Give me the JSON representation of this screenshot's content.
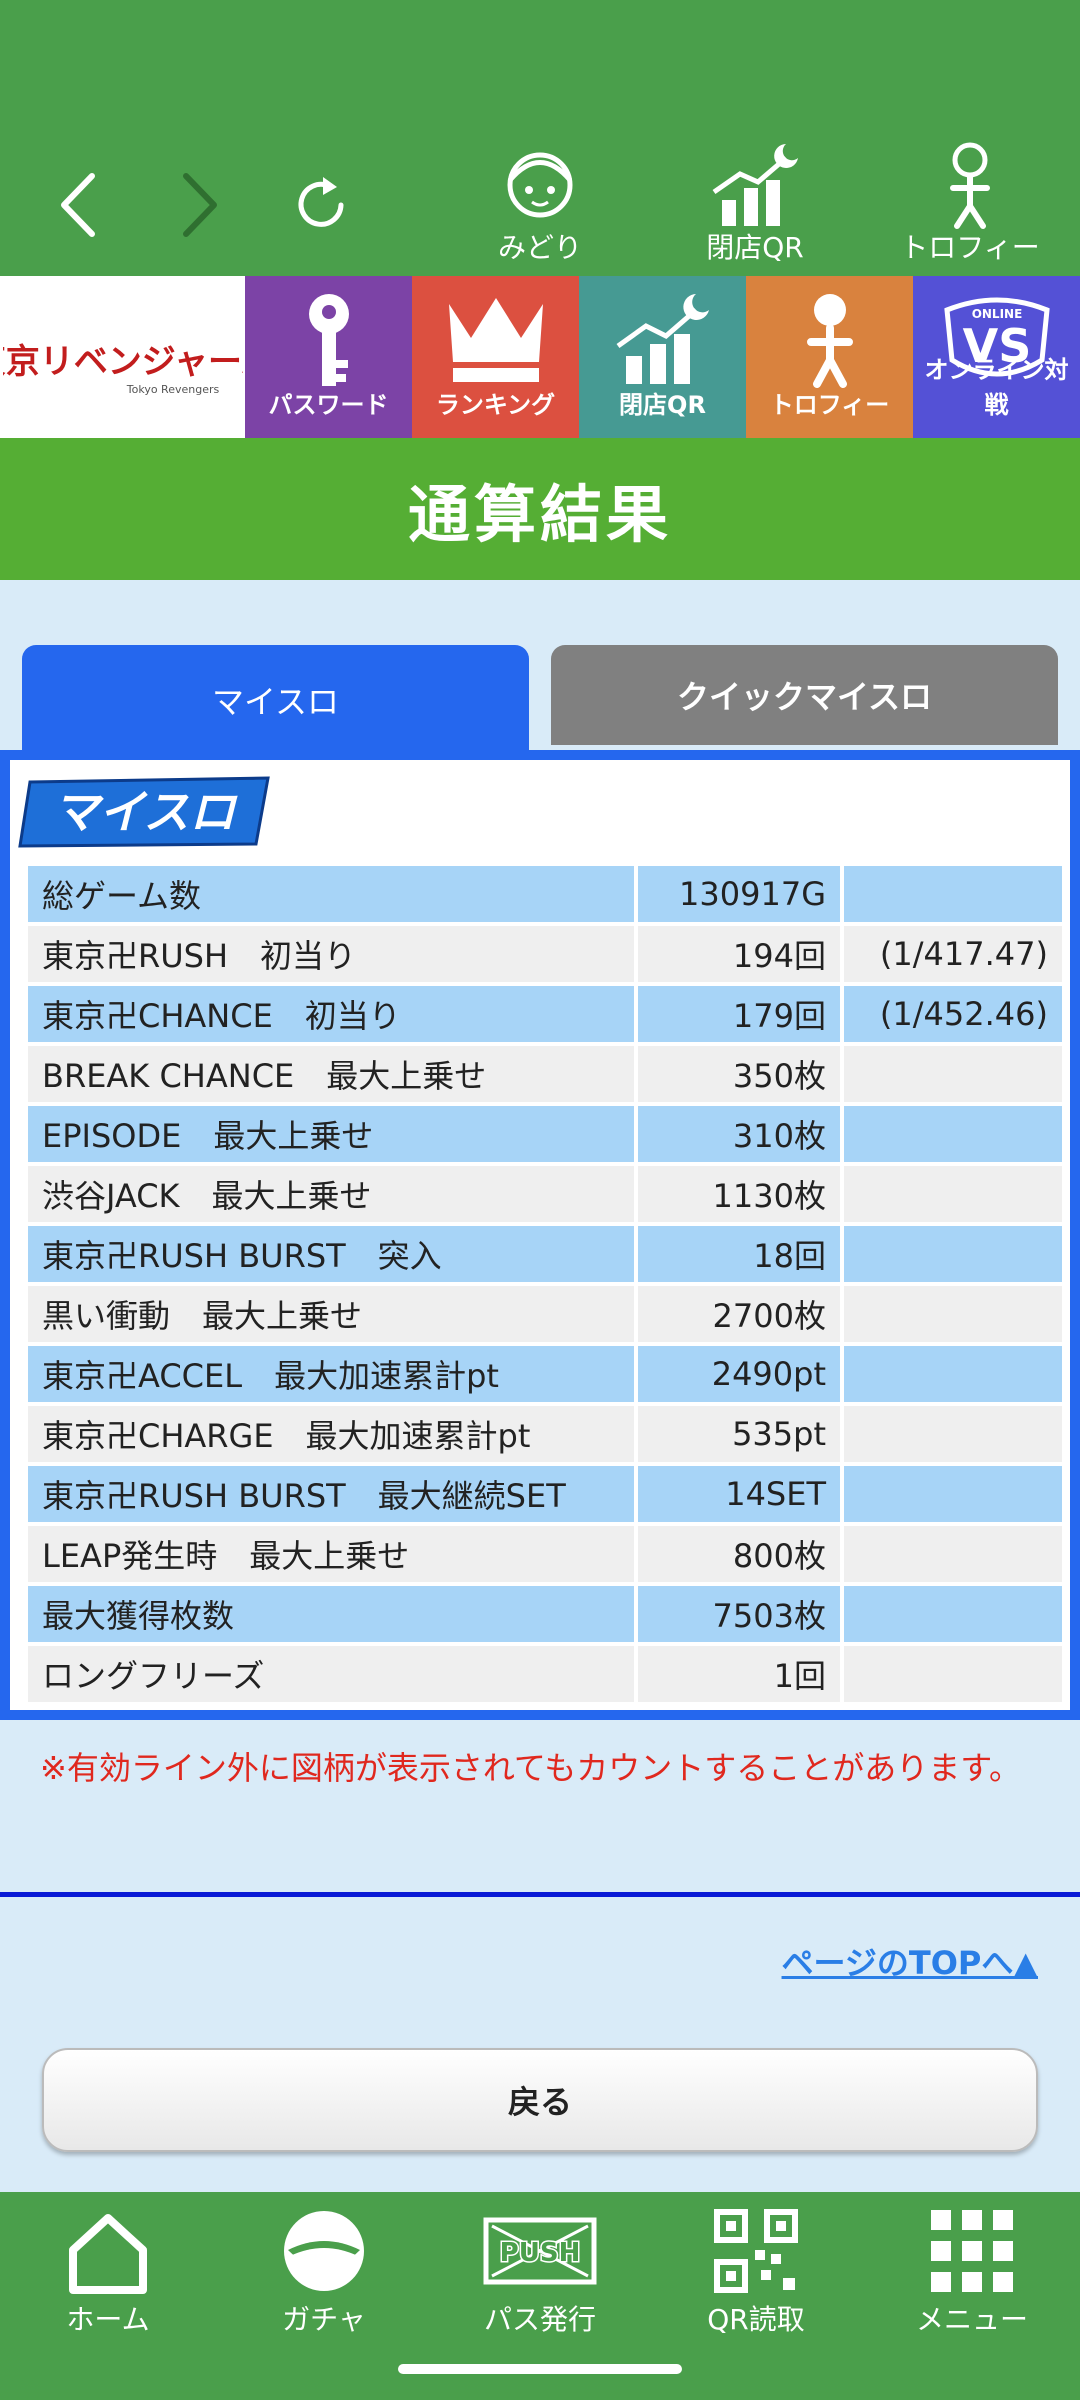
{
  "top_nav": {
    "icons": [
      {
        "label": "みどり",
        "icon": "character-icon"
      },
      {
        "label": "閉店QR",
        "icon": "chart-moon-icon"
      },
      {
        "label": "トロフィー",
        "icon": "trophy-figure-icon"
      }
    ]
  },
  "menu_row": {
    "logo_text": "東京リベンジャーズ",
    "logo_sub": "Tokyo Revengers",
    "items": [
      {
        "label": "パスワード",
        "color": "#7c43a6",
        "icon": "key-icon"
      },
      {
        "label": "ランキング",
        "color": "#dc5040",
        "icon": "crown-icon"
      },
      {
        "label": "閉店QR",
        "color": "#469a93",
        "icon": "chart-moon-icon"
      },
      {
        "label": "トロフィー",
        "color": "#d9823e",
        "icon": "trophy-figure-icon"
      },
      {
        "label": "オンライン対戦",
        "color": "#5451d6",
        "icon": "vs-icon",
        "vs_text": "VS",
        "vs_sub": "ONLINE"
      }
    ]
  },
  "page": {
    "title": "通算結果"
  },
  "tabs": [
    {
      "label": "マイスロ",
      "active": true
    },
    {
      "label": "クイックマイスロ",
      "active": false
    }
  ],
  "myslo_logo": "マイスロ",
  "stats": [
    {
      "label": "総ゲーム数",
      "value": "130917G",
      "ratio": ""
    },
    {
      "label": "東京卍RUSH　初当り",
      "value": "194回",
      "ratio": "(1/417.47)"
    },
    {
      "label": "東京卍CHANCE　初当り",
      "value": "179回",
      "ratio": "(1/452.46)"
    },
    {
      "label": "BREAK CHANCE　最大上乗せ",
      "value": "350枚",
      "ratio": ""
    },
    {
      "label": "EPISODE　最大上乗せ",
      "value": "310枚",
      "ratio": ""
    },
    {
      "label": "渋谷JACK　最大上乗せ",
      "value": "1130枚",
      "ratio": ""
    },
    {
      "label": "東京卍RUSH BURST　突入",
      "value": "18回",
      "ratio": ""
    },
    {
      "label": "黒い衝動　最大上乗せ",
      "value": "2700枚",
      "ratio": ""
    },
    {
      "label": "東京卍ACCEL　最大加速累計pt",
      "value": "2490pt",
      "ratio": ""
    },
    {
      "label": "東京卍CHARGE　最大加速累計pt",
      "value": "535pt",
      "ratio": ""
    },
    {
      "label": "東京卍RUSH BURST　最大継続SET",
      "value": "14SET",
      "ratio": ""
    },
    {
      "label": "LEAP発生時　最大上乗せ",
      "value": "800枚",
      "ratio": ""
    },
    {
      "label": "最大獲得枚数",
      "value": "7503枚",
      "ratio": ""
    },
    {
      "label": "ロングフリーズ",
      "value": "1回",
      "ratio": ""
    }
  ],
  "note": "※有効ライン外に図柄が表示されてもカウントすることがあります。",
  "page_top_link": "ページのTOPへ▲",
  "back_button": "戻る",
  "bottom_nav": [
    {
      "label": "ホーム",
      "icon": "home-icon"
    },
    {
      "label": "ガチャ",
      "icon": "gacha-icon"
    },
    {
      "label": "パス発行",
      "icon": "push-pass-icon",
      "badge": "PUSH"
    },
    {
      "label": "QR読取",
      "icon": "qr-icon"
    },
    {
      "label": "メニュー",
      "icon": "grid-menu-icon"
    }
  ],
  "colors": {
    "nav_green": "#4a9f4b",
    "title_green": "#55ae34",
    "tab_blue": "#2567ee",
    "row_blue": "#a7d4f7",
    "note_red": "#e0281e"
  }
}
